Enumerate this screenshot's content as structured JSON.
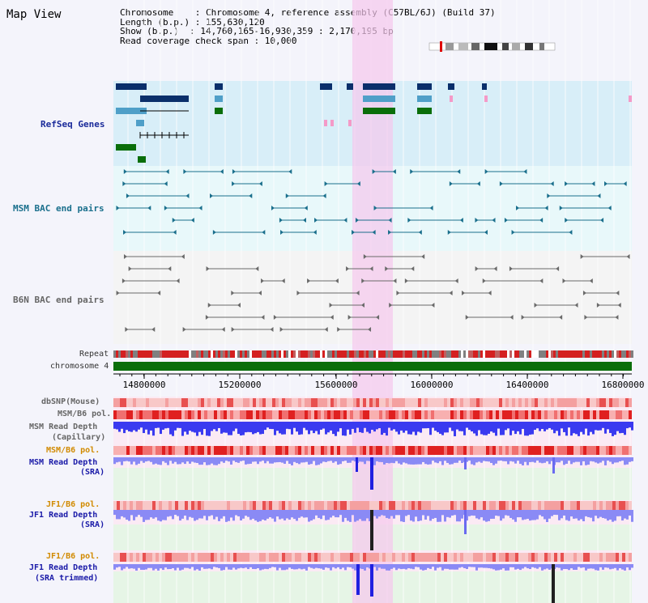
{
  "title": "Map View",
  "info": {
    "line1": "Chromosome    : Chromosome 4, reference assembly (C57BL/6J) (Build 37)",
    "line2": "Length (b.p.) : 155,630,120",
    "line3": "Show (b.p.)  : 14,760,165-16,930,359 : 2,170,195 bp",
    "line4": "Read coverage check span : 10,000"
  },
  "labels": {
    "refseq": "RefSeq Genes",
    "msm_bac": "MSM BAC end pairs",
    "b6n_bac": "B6N BAC end pairs",
    "repeat": "Repeat",
    "chromosome": "chromosome 4",
    "dbsnp": "dbSNP(Mouse)",
    "msm_pol": "MSM/B6 pol.",
    "msm_depth_cap_1": "MSM Read Depth",
    "msm_depth_cap_2": "(Capillary)",
    "msm_pol2": "MSM/B6 pol.",
    "msm_depth_sra_1": "MSM Read Depth",
    "msm_depth_sra_2": "(SRA)",
    "jf1_pol": "JF1/B6 pol.",
    "jf1_depth_1": "JF1 Read Depth",
    "jf1_depth_2": "(SRA)",
    "jf1_pol2": "JF1/B6 pol.",
    "jf1_trim_1": "JF1 Read Depth",
    "jf1_trim_2": "(SRA trimmed)"
  },
  "axis": {
    "ticks": [
      "14800000",
      "15200000",
      "15600000",
      "16000000",
      "16400000",
      "16800000"
    ]
  },
  "colors": {
    "refseq_bg": "#d8eef8",
    "bac_bg": "#e8f8fa",
    "highlight": "#f5d0ee",
    "chromosome": "#0a6e0a",
    "depth_blue": "#3a3af0",
    "depth_light": "#8a8af5"
  }
}
